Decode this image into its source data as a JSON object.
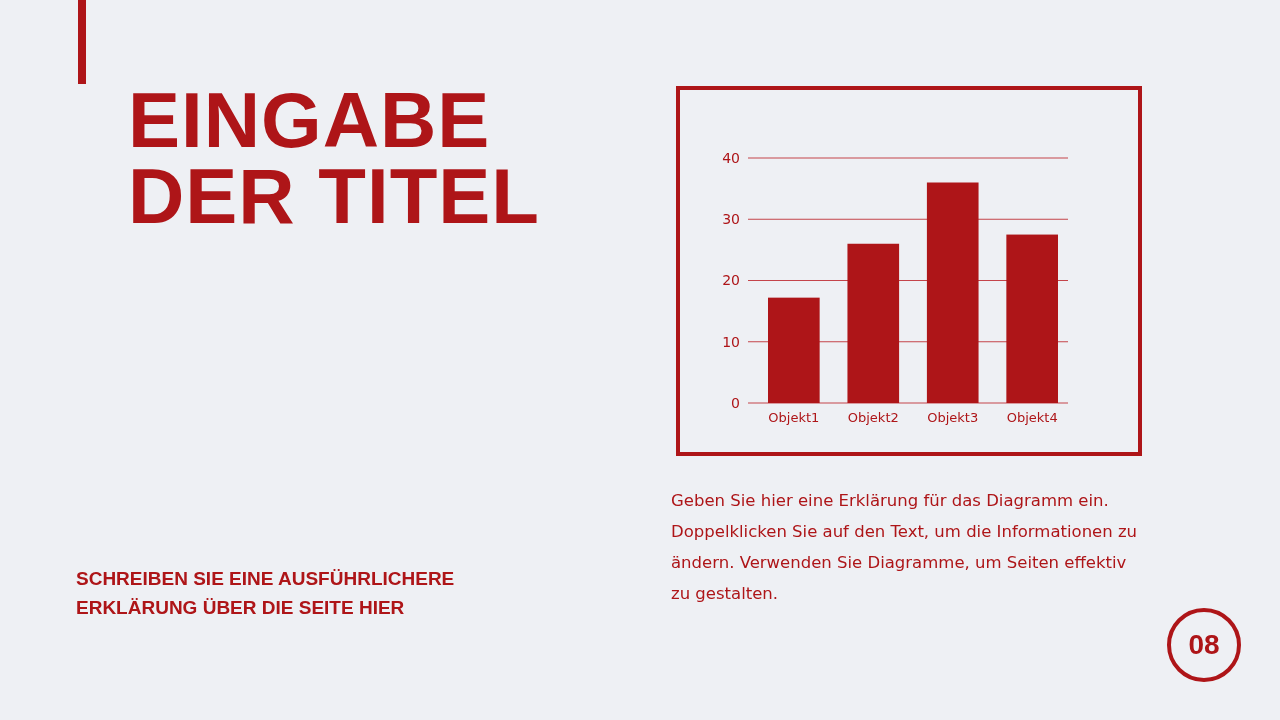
{
  "chart_data": {
    "type": "bar",
    "title": "EINGABE DER TITEL",
    "subtitle": "SCHREIBEN SIE EINE AUSFÜHRLICHERE ERKLÄRUNG ÜBER DIE SEITE HIER",
    "categories": [
      "Objekt1",
      "Objekt2",
      "Objekt3",
      "Objekt4"
    ],
    "values": [
      17.2,
      26,
      36,
      27.5
    ],
    "color": "#ae1518",
    "ylim": [
      0,
      40
    ],
    "yticks": [
      0,
      10,
      20,
      30,
      40
    ],
    "grid": "y",
    "annotations": [
      "Geben Sie hier eine Erklärung für das Diagramm ein. Doppelklicken Sie auf den Text, um die Informationen zu ändern. Verwenden Sie Diagramme, um Seiten effektiv zu gestalten.",
      "08"
    ]
  }
}
